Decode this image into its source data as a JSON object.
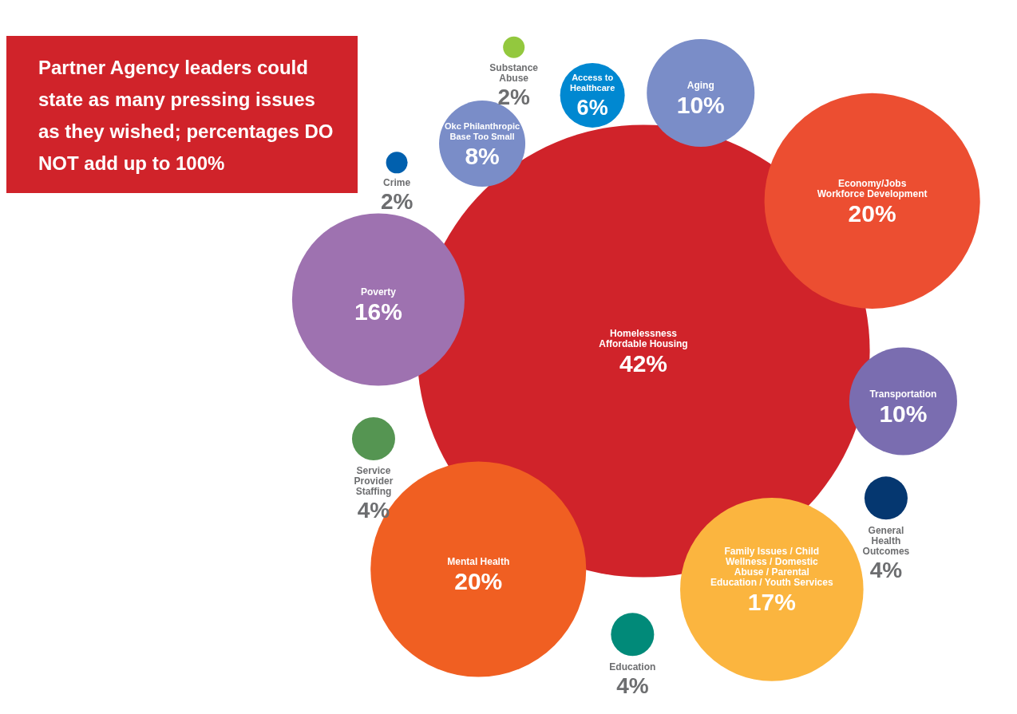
{
  "chart_data": {
    "type": "other",
    "title": "Partner Agency leaders could state as many pressing issues as they wished; percentages DO NOT add up to 100%",
    "categories": [
      "Homelessness\nAffordable Housing",
      "Poverty",
      "Crime",
      "Okc Philanthropic\nBase Too Small",
      "Substance\nAbuse",
      "Access to\nHealthcare",
      "Aging",
      "Economy/Jobs\nWorkforce Development",
      "Transportation",
      "General\nHealth\nOutcomes",
      "Family Issues / Child\nWellness / Domestic\nAbuse / Parental\nEducation / Youth Services",
      "Education",
      "Mental Health",
      "Service\nProvider\nStaffing"
    ],
    "values": [
      42,
      16,
      2,
      8,
      2,
      6,
      10,
      20,
      10,
      4,
      17,
      4,
      20,
      4
    ],
    "value_labels": [
      "42%",
      "16%",
      "2%",
      "8%",
      "2%",
      "6%",
      "10%",
      "20%",
      "10%",
      "4%",
      "17%",
      "4%",
      "20%",
      "4%"
    ],
    "colors": [
      "#d0232a",
      "#9e72b0",
      "#0160ae",
      "#7a8dc8",
      "#93c83e",
      "#0088d1",
      "#7a8dc8",
      "#ec4e31",
      "#7a6db0",
      "#053770",
      "#fbb53f",
      "#018a79",
      "#f05f22",
      "#559552"
    ]
  }
}
